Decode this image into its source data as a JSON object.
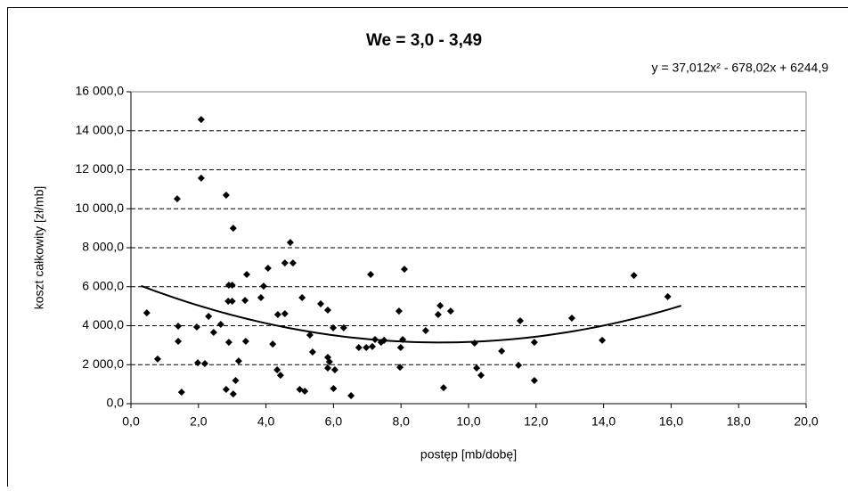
{
  "chart_data": {
    "type": "scatter",
    "title": "We = 3,0 - 3,49",
    "x_label": "postęp [mb/dobę]",
    "y_label": "koszt całkowity [zł/mb]",
    "color": "#000000",
    "grid": true,
    "xlim": [
      0,
      20
    ],
    "ylim": [
      0,
      16000
    ],
    "xticks": [
      {
        "value": 0,
        "label": "0,0"
      },
      {
        "value": 2,
        "label": "2,0"
      },
      {
        "value": 4,
        "label": "4,0"
      },
      {
        "value": 6,
        "label": "6,0"
      },
      {
        "value": 8,
        "label": "8,0"
      },
      {
        "value": 10,
        "label": "10,0"
      },
      {
        "value": 12,
        "label": "12,0"
      },
      {
        "value": 14,
        "label": "14,0"
      },
      {
        "value": 16,
        "label": "16,0"
      },
      {
        "value": 18,
        "label": "18,0"
      },
      {
        "value": 20,
        "label": "20,0"
      }
    ],
    "yticks": [
      {
        "value": 0,
        "label": "0,0"
      },
      {
        "value": 2000,
        "label": "2 000,0"
      },
      {
        "value": 4000,
        "label": "4 000,0"
      },
      {
        "value": 6000,
        "label": "6 000,0"
      },
      {
        "value": 8000,
        "label": "8 000,0"
      },
      {
        "value": 10000,
        "label": "10 000,0"
      },
      {
        "value": 12000,
        "label": "12 000,0"
      },
      {
        "value": 14000,
        "label": "14 000,0"
      },
      {
        "value": 16000,
        "label": "16 000,0"
      }
    ],
    "x": [
      0.47,
      0.79,
      1.37,
      1.4,
      1.4,
      1.5,
      1.95,
      1.98,
      2.08,
      2.08,
      2.19,
      2.3,
      2.45,
      2.66,
      2.82,
      2.82,
      2.88,
      2.9,
      2.9,
      3.0,
      3.03,
      3.03,
      3.0,
      3.1,
      3.19,
      3.38,
      3.4,
      3.43,
      3.85,
      3.93,
      4.06,
      4.2,
      4.33,
      4.35,
      4.43,
      4.56,
      4.56,
      4.72,
      4.8,
      5.0,
      5.07,
      5.15,
      5.3,
      5.38,
      5.62,
      5.83,
      5.83,
      5.83,
      5.88,
      5.99,
      6.0,
      6.04,
      6.3,
      6.52,
      6.75,
      6.97,
      7.1,
      7.15,
      7.23,
      7.41,
      7.5,
      7.94,
      7.99,
      7.97,
      8.05,
      8.1,
      8.73,
      9.1,
      9.16,
      9.26,
      9.47,
      10.18,
      10.24,
      10.37,
      10.98,
      11.48,
      11.53,
      11.95,
      11.95,
      13.06,
      13.96,
      14.9,
      15.9
    ],
    "values": [
      4660,
      2290,
      10510,
      3980,
      3200,
      590,
      3930,
      2100,
      14580,
      11570,
      2060,
      4480,
      3660,
      4070,
      10700,
      730,
      5260,
      3150,
      6080,
      6080,
      9000,
      500,
      5260,
      1190,
      2190,
      5300,
      3200,
      6630,
      5440,
      6030,
      6950,
      3060,
      1740,
      4570,
      1460,
      4620,
      7220,
      8270,
      7220,
      730,
      5440,
      640,
      3520,
      2650,
      5120,
      4800,
      2380,
      1830,
      2150,
      3890,
      780,
      1740,
      3890,
      410,
      2880,
      2880,
      6630,
      2930,
      3290,
      3150,
      3250,
      4750,
      2880,
      1870,
      3290,
      6900,
      3750,
      4570,
      5030,
      820,
      4750,
      3110,
      1830,
      1460,
      2700,
      1970,
      4250,
      3150,
      1190,
      4390,
      3250,
      6580,
      5490
    ],
    "trendline": {
      "label": "y = 37,012x² - 678,02x + 6244,9",
      "coefficients": [
        37.012,
        -678.02,
        6244.9
      ],
      "xrange": [
        0.3,
        16.3
      ]
    }
  }
}
